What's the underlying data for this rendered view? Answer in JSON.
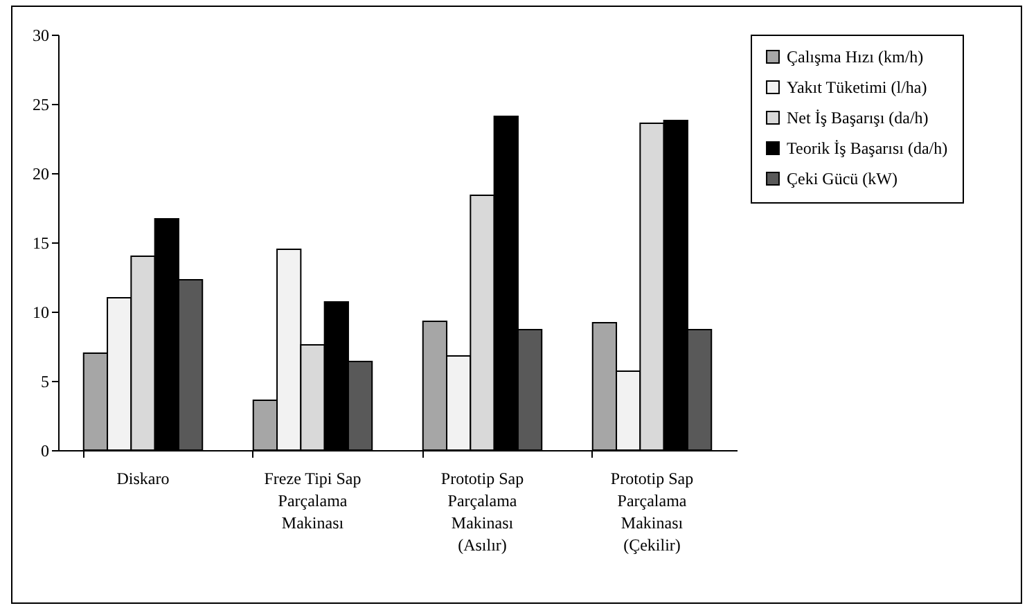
{
  "chart_data": {
    "type": "bar",
    "categories": [
      "Diskaro",
      "Freze Tipi Sap Parçalama Makinası",
      "Prototip Sap Parçalama Makinası (Asılır)",
      "Prototip Sap Parçalama Makinası (Çekilir)"
    ],
    "series": [
      {
        "name": "Çalışma Hızı (km/h)",
        "color": "#a6a6a6",
        "values": [
          7.0,
          3.6,
          9.3,
          9.2
        ]
      },
      {
        "name": "Yakıt Tüketimi (l/ha)",
        "color": "#f2f2f2",
        "values": [
          11.0,
          14.5,
          6.8,
          5.7
        ]
      },
      {
        "name": "Net İş Başarışı (da/h)",
        "color": "#d9d9d9",
        "values": [
          14.0,
          7.6,
          18.4,
          23.6
        ]
      },
      {
        "name": "Teorik İş Başarısı (da/h)",
        "color": "#000000",
        "values": [
          16.7,
          10.7,
          24.1,
          23.8
        ]
      },
      {
        "name": "Çeki Gücü (kW)",
        "color": "#595959",
        "values": [
          12.3,
          6.4,
          8.7,
          8.7
        ]
      }
    ],
    "ylim": [
      0,
      30
    ],
    "yticks": [
      0,
      5,
      10,
      15,
      20,
      25,
      30
    ],
    "grid": false,
    "legend": "right"
  }
}
